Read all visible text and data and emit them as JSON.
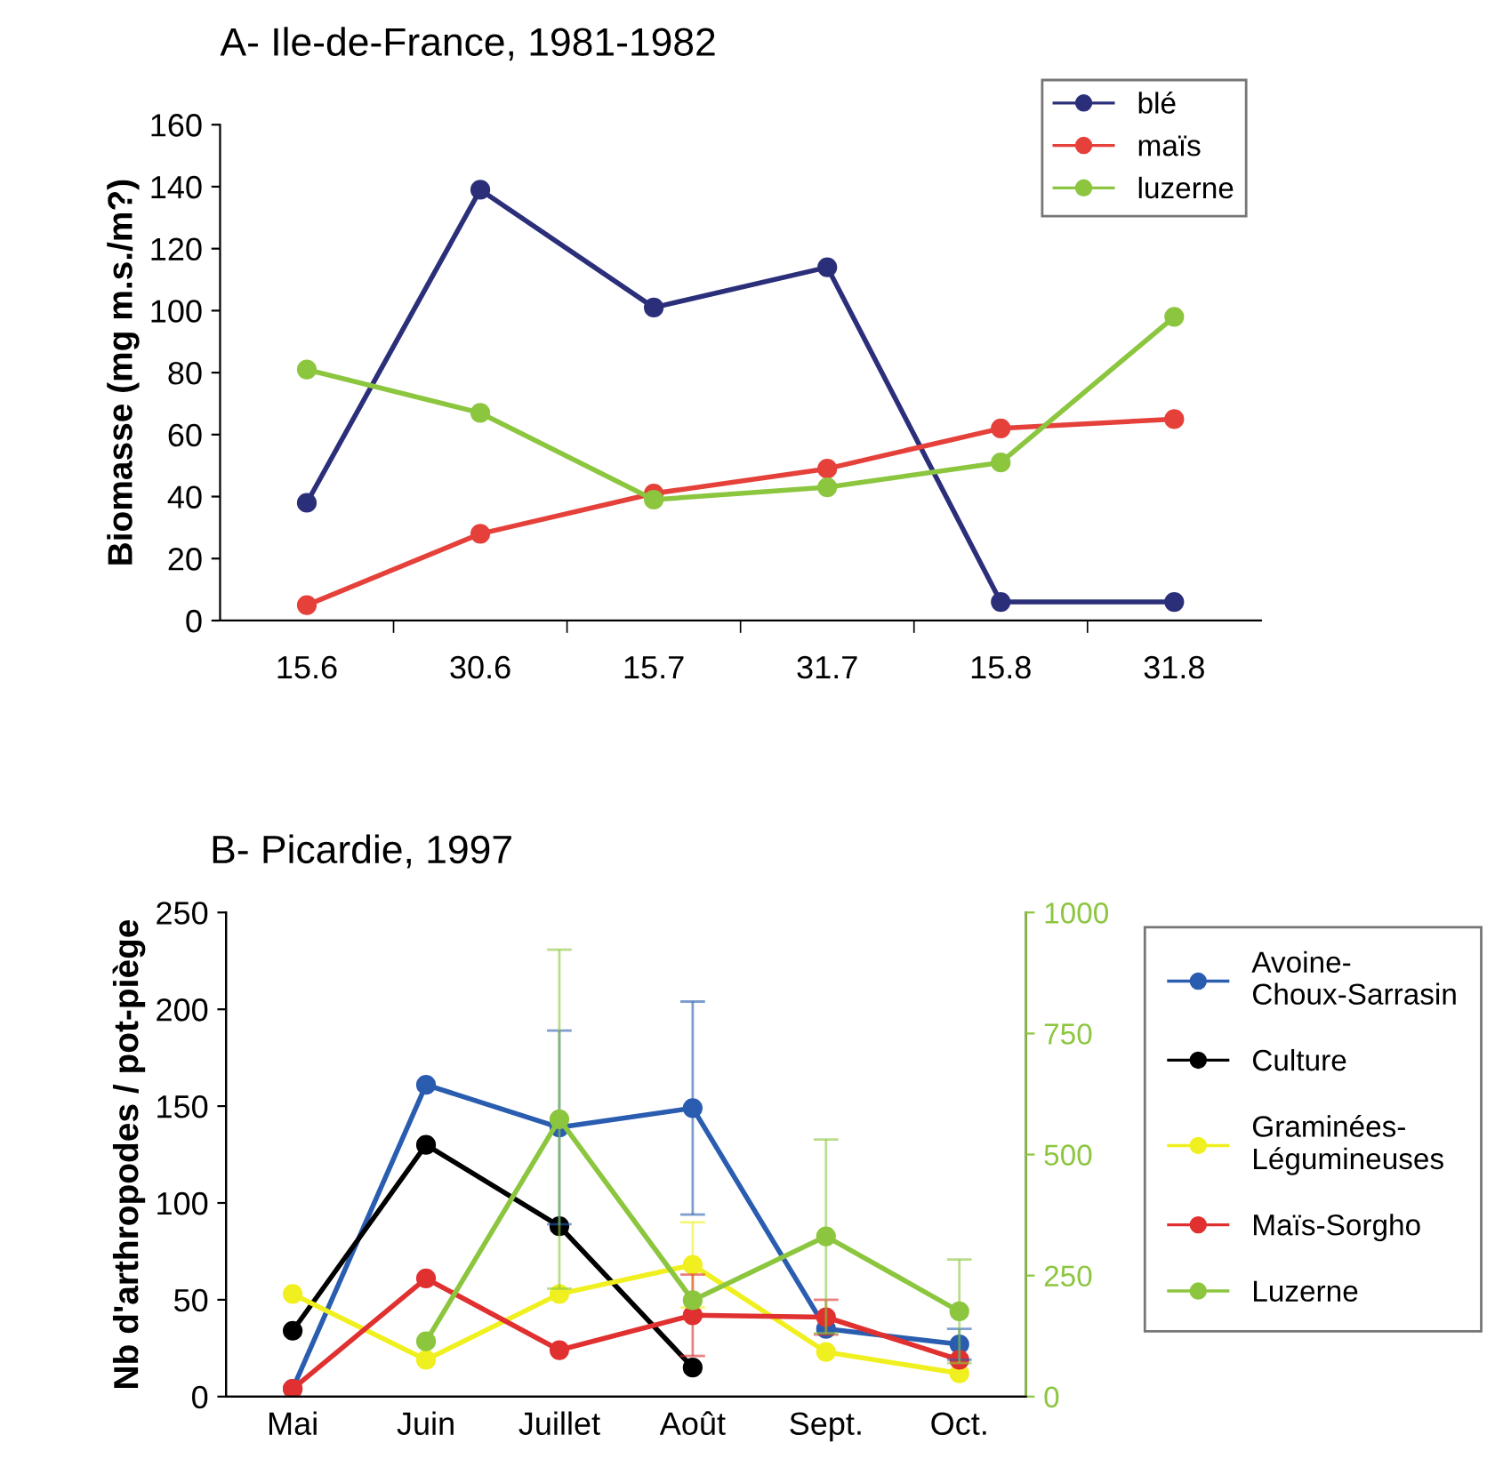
{
  "chart_data": [
    {
      "type": "line",
      "title": "A- Ile-de-France, 1981-1982",
      "ylabel": "Biomasse (mg m.s./m?)",
      "categories": [
        "15.6",
        "30.6",
        "15.7",
        "31.7",
        "15.8",
        "31.8"
      ],
      "series": [
        {
          "name": "blé",
          "color": "#2b2f7a",
          "values": [
            38,
            139,
            101,
            114,
            6,
            6
          ]
        },
        {
          "name": "maïs",
          "color": "#e5403a",
          "values": [
            5,
            28,
            41,
            49,
            62,
            65
          ]
        },
        {
          "name": "luzerne",
          "color": "#8cc63f",
          "values": [
            81,
            67,
            39,
            43,
            51,
            98
          ]
        }
      ],
      "ylim": [
        0,
        160
      ],
      "yticks": [
        0,
        20,
        40,
        60,
        80,
        100,
        120,
        140,
        160
      ],
      "marker": "circle",
      "line_style": "solid",
      "grid": false,
      "legend": "top right"
    },
    {
      "type": "line",
      "title": "B- Picardie, 1997",
      "ylabel": "Nb d'arthropodes / pot-piège",
      "categories": [
        "Mai",
        "Juin",
        "Juillet",
        "Août",
        "Sept.",
        "Oct."
      ],
      "series": [
        {
          "name": "Avoine-Choux-Sarrasin",
          "color": "#2a5db0",
          "values": [
            4,
            161,
            139,
            149,
            35,
            27
          ],
          "errors": [
            null,
            null,
            50,
            55,
            null,
            8
          ]
        },
        {
          "name": "Culture",
          "color": "#000000",
          "values": [
            34,
            130,
            88,
            15,
            null,
            null
          ]
        },
        {
          "name": "Graminées-Légumineuses",
          "color": "#f0f020",
          "values": [
            53,
            19,
            53,
            68,
            23,
            12
          ],
          "errors": [
            null,
            null,
            null,
            22,
            null,
            null
          ]
        },
        {
          "name": "Maïs-Sorgho",
          "color": "#e03030",
          "values": [
            4,
            61,
            24,
            42,
            41,
            19
          ],
          "errors": [
            null,
            null,
            null,
            21,
            9,
            null
          ]
        },
        {
          "name": "Luzerne",
          "color": "#8cc63f",
          "axis": "y2",
          "values": [
            null,
            114,
            573,
            199,
            331,
            176
          ],
          "errors": [
            null,
            null,
            350,
            null,
            200,
            107
          ]
        }
      ],
      "ylim": [
        0,
        250
      ],
      "yticks": [
        0,
        50,
        100,
        150,
        200,
        250
      ],
      "y2lim": [
        0,
        1000
      ],
      "y2ticks": [
        0,
        250,
        500,
        750,
        1000
      ],
      "marker": "circle",
      "line_style": "solid",
      "grid": false,
      "legend": "right"
    }
  ]
}
